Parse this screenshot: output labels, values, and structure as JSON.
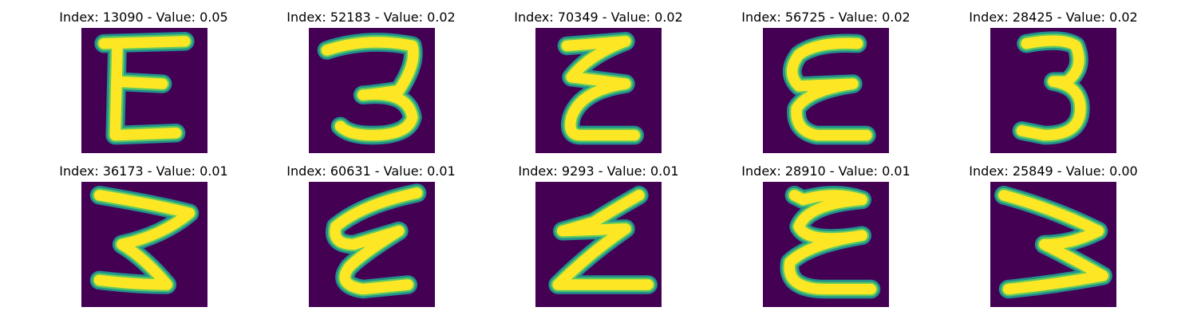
{
  "colors": {
    "background": "#440154",
    "stroke_core": "#fde725",
    "stroke_edge": "#21918c",
    "stroke_mid": "#5ec962"
  },
  "samples": [
    {
      "title": "Index: 13090 - Value: 0.05",
      "digit": "E"
    },
    {
      "title": "Index: 52183 - Value: 0.02",
      "digit": "3"
    },
    {
      "title": "Index: 70349 - Value: 0.02",
      "digit": "E"
    },
    {
      "title": "Index: 56725 - Value: 0.02",
      "digit": "E"
    },
    {
      "title": "Index: 28425 - Value: 0.02",
      "digit": "3"
    },
    {
      "title": "Index: 36173 - Value: 0.01",
      "digit": "3"
    },
    {
      "title": "Index: 60631 - Value: 0.01",
      "digit": "E"
    },
    {
      "title": "Index: 9293 - Value: 0.01",
      "digit": "E"
    },
    {
      "title": "Index: 28910 - Value: 0.01",
      "digit": "E"
    },
    {
      "title": "Index: 25849 - Value: 0.00",
      "digit": "3"
    }
  ]
}
